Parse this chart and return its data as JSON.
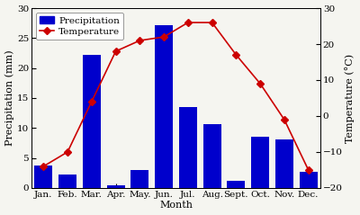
{
  "months": [
    "Jan.",
    "Feb.",
    "Mar.",
    "Apr.",
    "May.",
    "Jun.",
    "Jul.",
    "Aug.",
    "Sept.",
    "Oct.",
    "Nov.",
    "Dec."
  ],
  "precipitation": [
    3.7,
    2.2,
    22.2,
    0.4,
    3.0,
    27.2,
    13.5,
    10.7,
    1.2,
    8.6,
    8.1,
    2.7
  ],
  "temperature": [
    -14,
    -10,
    4,
    18,
    21,
    22,
    26,
    26,
    17,
    9,
    -1,
    -15
  ],
  "bar_color": "#0000cc",
  "line_color": "#cc0000",
  "marker_style": "D",
  "marker_size": 4,
  "xlabel": "Month",
  "ylabel_left": "Precipitation (mm)",
  "ylabel_right": "Temperature (°C)",
  "ylim_left": [
    0,
    30
  ],
  "ylim_right": [
    -20,
    30
  ],
  "yticks_left": [
    0,
    5,
    10,
    15,
    20,
    25,
    30
  ],
  "yticks_right": [
    -20,
    -10,
    0,
    10,
    20,
    30
  ],
  "legend_labels": [
    "Precipitation",
    "Temperature"
  ],
  "background_color": "#f5f5f0",
  "label_fontsize": 8,
  "tick_fontsize": 7.5
}
